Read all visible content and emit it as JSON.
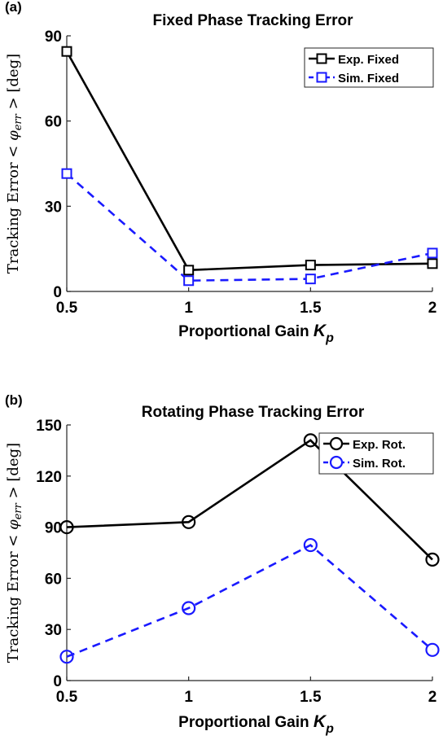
{
  "chart_data": [
    {
      "panel_label": "(a)",
      "type": "line",
      "title": "Fixed Phase Tracking Error",
      "xlabel": "Proportional Gain",
      "xlabel_symbol": "K",
      "xlabel_subscript": "p",
      "ylabel": "Tracking Error < φ_err > [deg]",
      "ylabel_prefix": "Tracking Error <",
      "ylabel_symbol": "φ",
      "ylabel_subscript": "err",
      "ylabel_suffix": "> [deg]",
      "x": [
        0.5,
        1,
        1.5,
        2
      ],
      "xticks": [
        "0.5",
        "1",
        "1.5",
        "2"
      ],
      "xlim": [
        0.5,
        2
      ],
      "ylim": [
        0,
        90
      ],
      "yticks": [
        "0",
        "30",
        "60",
        "90"
      ],
      "legend_position": "top-right",
      "marker": "square",
      "series": [
        {
          "name": "Exp. Fixed",
          "values": [
            84.5,
            7.5,
            9.3,
            9.8
          ],
          "color": "#000000",
          "dash": "solid"
        },
        {
          "name": "Sim. Fixed",
          "values": [
            41.5,
            3.8,
            4.4,
            13.5
          ],
          "color": "#1a1aff",
          "dash": "dashed"
        }
      ]
    },
    {
      "panel_label": "(b)",
      "type": "line",
      "title": "Rotating Phase Tracking Error",
      "xlabel": "Proportional Gain",
      "xlabel_symbol": "K",
      "xlabel_subscript": "p",
      "ylabel": "Tracking Error < φ_err > [deg]",
      "ylabel_prefix": "Tracking Error <",
      "ylabel_symbol": "φ",
      "ylabel_subscript": "err",
      "ylabel_suffix": "> [deg]",
      "x": [
        0.5,
        1,
        1.5,
        2
      ],
      "xticks": [
        "0.5",
        "1",
        "1.5",
        "2"
      ],
      "xlim": [
        0.5,
        2
      ],
      "ylim": [
        0,
        150
      ],
      "yticks": [
        "0",
        "30",
        "60",
        "90",
        "120",
        "150"
      ],
      "legend_position": "top-right",
      "marker": "circle",
      "series": [
        {
          "name": "Exp. Rot.",
          "values": [
            90,
            93,
            141,
            71
          ],
          "color": "#000000",
          "dash": "solid"
        },
        {
          "name": "Sim. Rot.",
          "values": [
            14,
            42.5,
            79.5,
            18
          ],
          "color": "#1a1aff",
          "dash": "dashed"
        }
      ]
    }
  ]
}
